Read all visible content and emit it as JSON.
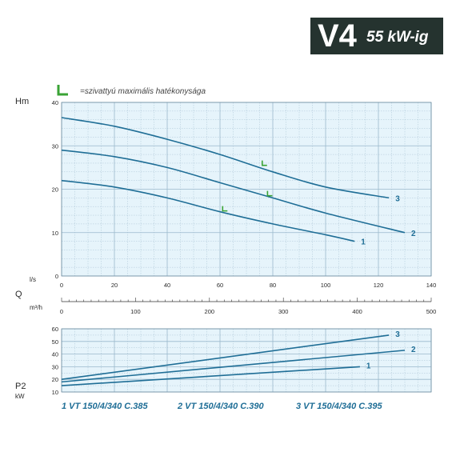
{
  "header": {
    "title": "V4",
    "power": "55 kW-ig",
    "bg_color": "#25332f"
  },
  "legend_text": "=szivattyú maximális hatékonysága",
  "impeller_icon": "pump-impeller-icon",
  "models": [
    "1 VT 150/4/340 C.385",
    "2 VT 150/4/340 C.390",
    "3 VT 150/4/340 C.395"
  ],
  "colors": {
    "curve": "#1f6e96",
    "efficiency": "#3aa335",
    "plot_bg": "#e6f4fb",
    "grid": "#9ab8cc"
  },
  "chart_data": [
    {
      "type": "line",
      "ylabel": "Hm",
      "xlabel": "l/s",
      "xlim": [
        0,
        140
      ],
      "ylim": [
        0,
        40
      ],
      "xticks": [
        0,
        20,
        40,
        60,
        80,
        100,
        120,
        140
      ],
      "yticks": [
        0,
        10,
        20,
        30,
        40
      ],
      "grid": true,
      "series": [
        {
          "name": "1",
          "x": [
            0,
            20,
            40,
            60,
            80,
            100,
            111
          ],
          "y": [
            22,
            20.5,
            18,
            14.8,
            12,
            9.5,
            8
          ]
        },
        {
          "name": "2",
          "x": [
            0,
            20,
            40,
            60,
            80,
            100,
            130
          ],
          "y": [
            29,
            27.5,
            25,
            21.5,
            18,
            14.5,
            10
          ]
        },
        {
          "name": "3",
          "x": [
            0,
            20,
            40,
            60,
            80,
            100,
            124
          ],
          "y": [
            36.5,
            34.5,
            31.5,
            28,
            24,
            20.5,
            18
          ]
        }
      ],
      "efficiency_points": [
        {
          "series": "1",
          "x": 61,
          "y": 15
        },
        {
          "series": "2",
          "x": 78,
          "y": 18.5
        },
        {
          "series": "3",
          "x": 76,
          "y": 25.5
        }
      ]
    },
    {
      "type": "axis",
      "label": "Q",
      "unit": "m³/h",
      "xlim": [
        0,
        500
      ],
      "xticks": [
        0,
        100,
        200,
        300,
        400,
        500
      ]
    },
    {
      "type": "line",
      "ylabel": "P2",
      "yunit": "kW",
      "xlim": [
        0,
        140
      ],
      "ylim": [
        10,
        60
      ],
      "yticks": [
        10,
        20,
        30,
        40,
        50,
        60
      ],
      "grid": true,
      "series": [
        {
          "name": "1",
          "x": [
            0,
            113
          ],
          "y": [
            15,
            30
          ]
        },
        {
          "name": "2",
          "x": [
            0,
            130
          ],
          "y": [
            18,
            43
          ]
        },
        {
          "name": "3",
          "x": [
            0,
            124
          ],
          "y": [
            20,
            55
          ]
        }
      ]
    }
  ]
}
